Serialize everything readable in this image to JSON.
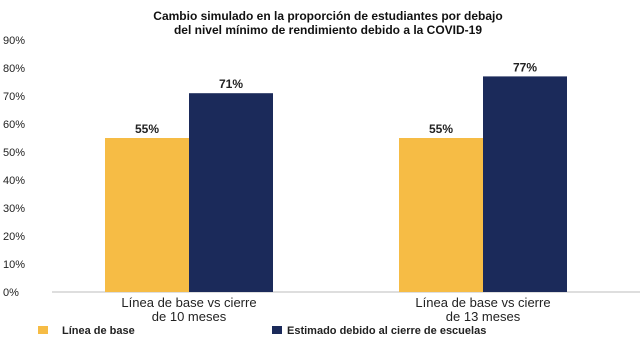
{
  "chart_data": {
    "type": "bar",
    "title": "Cambio simulado en la proporción de estudiantes por debajo del nivel mínimo de rendimiento debido a la COVID-19",
    "title_lines": [
      "Cambio simulado en la proporción de estudiantes por debajo",
      "del nivel mínimo de rendimiento debido a la COVID-19"
    ],
    "categories": [
      [
        "Línea de base vs cierre",
        "de 10 meses"
      ],
      [
        "Línea de base vs cierre",
        "de 13 meses"
      ]
    ],
    "series": [
      {
        "name": "Línea de base",
        "color": "#F6BC45",
        "values": [
          55,
          55
        ],
        "labels": [
          "55%",
          "55%"
        ]
      },
      {
        "name": "Estimado debido al cierre de escuelas",
        "color": "#1B2A5A",
        "values": [
          71,
          77
        ],
        "labels": [
          "71%",
          "77%"
        ]
      }
    ],
    "y_ticks": [
      "0%",
      "10%",
      "20%",
      "30%",
      "40%",
      "50%",
      "60%",
      "70%",
      "80%",
      "90%"
    ],
    "ylim": [
      0,
      90
    ],
    "grid": false,
    "legend_position": "bottom-left"
  }
}
